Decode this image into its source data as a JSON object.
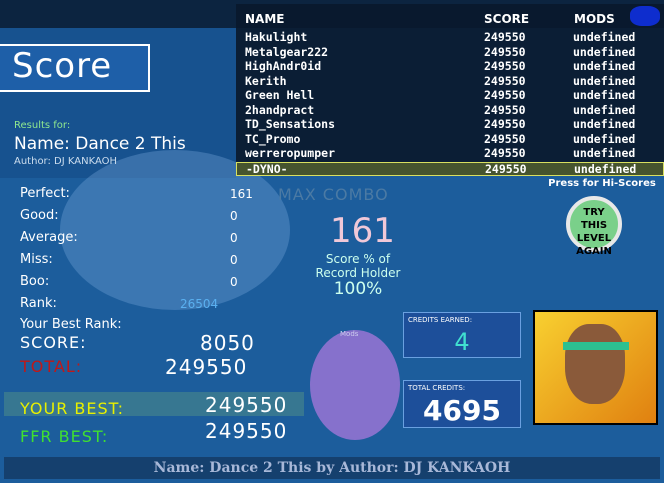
{
  "title": "Score",
  "results_for": "Results for:",
  "song_name": "Name: Dance 2 This",
  "author": "Author: DJ KANKAOH",
  "judgements": [
    {
      "label": "Perfect:",
      "value": "161"
    },
    {
      "label": "Good:",
      "value": "0"
    },
    {
      "label": "Average:",
      "value": "0"
    },
    {
      "label": "Miss:",
      "value": "0"
    },
    {
      "label": "Boo:",
      "value": "0"
    },
    {
      "label": "Rank:",
      "value": "26504"
    }
  ],
  "best_rank_label": "Your Best Rank:",
  "score_label": "SCORE:",
  "score_value": "8050",
  "total_label": "TOTAL:",
  "total_value": "249550",
  "your_best_label": "YOUR BEST:",
  "your_best_value": "249550",
  "ffr_best_label": "FFR BEST:",
  "ffr_best_value": "249550",
  "max_combo_label": "MAX COMBO",
  "max_combo": "161",
  "pct_label1": "Score % of",
  "pct_label2": "Record Holder",
  "pct_value": "100%",
  "try_again": [
    "TRY THIS",
    "LEVEL",
    "AGAIN"
  ],
  "mods_label": "Mods",
  "credits_earned_label": "CREDITS EARNED:",
  "credits_earned": "4",
  "total_credits_label": "TOTAL CREDITS:",
  "total_credits": "4695",
  "press_hiscores": "Press for Hi-Scores",
  "footer": "Name: Dance 2 This by Author: DJ KANKAOH",
  "leaderboard": {
    "headers": {
      "name": "NAME",
      "score": "SCORE",
      "mods": "MODS"
    },
    "rows": [
      {
        "name": "Hakulight",
        "score": "249550",
        "mods": "undefined"
      },
      {
        "name": "Metalgear222",
        "score": "249550",
        "mods": "undefined"
      },
      {
        "name": "HighAndr0id",
        "score": "249550",
        "mods": "undefined"
      },
      {
        "name": "Kerith",
        "score": "249550",
        "mods": "undefined"
      },
      {
        "name": "Green Hell",
        "score": "249550",
        "mods": "undefined"
      },
      {
        "name": "2handpract",
        "score": "249550",
        "mods": "undefined"
      },
      {
        "name": "TD_Sensations",
        "score": "249550",
        "mods": "undefined"
      },
      {
        "name": "TC_Promo",
        "score": "249550",
        "mods": "undefined"
      },
      {
        "name": "werreropumper",
        "score": "249550",
        "mods": "undefined"
      },
      {
        "name": "-DYNO-",
        "score": "249550",
        "mods": "undefined"
      }
    ]
  }
}
